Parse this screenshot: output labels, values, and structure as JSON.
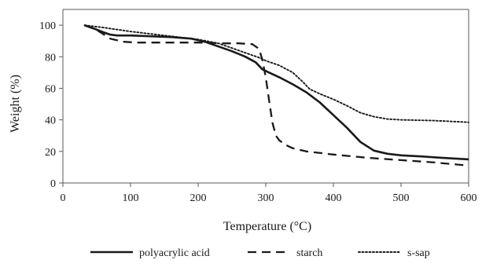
{
  "chart_data": {
    "type": "line",
    "title": "",
    "xlabel": "Temperature (°C)",
    "ylabel": "Weight (%)",
    "xlim": [
      0,
      600
    ],
    "ylim": [
      0,
      110
    ],
    "x_ticks": [
      0,
      100,
      200,
      300,
      400,
      500,
      600
    ],
    "y_ticks": [
      0,
      20,
      40,
      60,
      80,
      100
    ],
    "grid": false,
    "legend_position": "bottom",
    "series": [
      {
        "name": "polyacrylic acid",
        "style": "solid",
        "color": "#1a1a1a",
        "x": [
          32,
          45,
          60,
          70,
          80,
          100,
          130,
          160,
          190,
          210,
          230,
          250,
          270,
          285,
          295,
          305,
          320,
          340,
          360,
          380,
          400,
          420,
          440,
          460,
          480,
          500,
          530,
          560,
          600
        ],
        "y": [
          100,
          98,
          95.5,
          94,
          93.5,
          93.5,
          93,
          92.5,
          91.5,
          89.5,
          86.5,
          83.5,
          80,
          76.5,
          72,
          70,
          67,
          62.5,
          57.5,
          51,
          43,
          35,
          26,
          20.5,
          18.5,
          17.5,
          16.8,
          16,
          15
        ]
      },
      {
        "name": "starch",
        "style": "dashed",
        "color": "#1a1a1a",
        "x": [
          32,
          50,
          70,
          90,
          110,
          150,
          200,
          240,
          260,
          280,
          290,
          295,
          300,
          305,
          310,
          315,
          320,
          330,
          340,
          360,
          400,
          450,
          500,
          550,
          600
        ],
        "y": [
          100,
          97,
          91.5,
          89.5,
          89,
          89,
          89,
          88.5,
          88.5,
          88,
          85,
          78,
          67,
          52,
          38,
          30,
          27,
          24,
          22,
          20,
          18,
          16,
          14.5,
          13,
          11
        ]
      },
      {
        "name": "s-sap",
        "style": "dotted",
        "color": "#1a1a1a",
        "x": [
          32,
          60,
          100,
          150,
          200,
          230,
          250,
          270,
          290,
          300,
          320,
          340,
          355,
          365,
          380,
          400,
          420,
          440,
          460,
          480,
          500,
          550,
          600
        ],
        "y": [
          100,
          98.5,
          96,
          93.5,
          91,
          88.5,
          85.5,
          82.5,
          79.5,
          77.5,
          74.5,
          70,
          64,
          59.5,
          56.5,
          53,
          49,
          44.5,
          42,
          40.5,
          40,
          39.5,
          38.5
        ]
      }
    ]
  }
}
